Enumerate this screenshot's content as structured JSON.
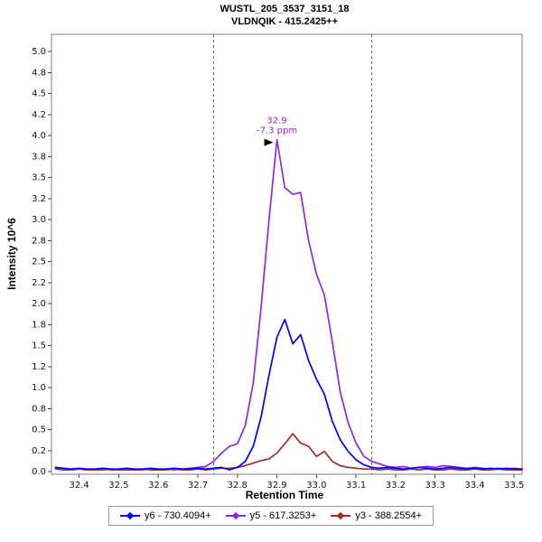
{
  "chart_data": {
    "type": "line",
    "title_line1": "WUSTL_205_3537_3151_18",
    "title_line2": "VLDNQIK - 415.2425++",
    "xlabel": "Retention Time",
    "ylabel": "Intensity 10^6",
    "xlim": [
      32.33,
      33.52
    ],
    "ylim": [
      0,
      5.22
    ],
    "grid": false,
    "legend_position": "bottom",
    "x_ticks": {
      "values": [
        32.4,
        32.5,
        32.6,
        32.7,
        32.8,
        32.9,
        33.0,
        33.1,
        33.2,
        33.3,
        33.4,
        33.5
      ],
      "labels": [
        "32.4",
        "32.5",
        "32.6",
        "32.7",
        "32.8",
        "32.9",
        "33.0",
        "33.1",
        "33.2",
        "33.3",
        "33.4",
        "33.5"
      ]
    },
    "y_ticks": {
      "values": [
        0,
        0.25,
        0.5,
        0.75,
        1,
        1.25,
        1.5,
        1.75,
        2,
        2.25,
        2.5,
        2.75,
        3,
        3.25,
        3.5,
        3.75,
        4,
        4.25,
        4.5,
        4.75,
        5
      ],
      "labels": [
        "0.0",
        "0.2",
        "0.5",
        "0.8",
        "1.0",
        "1.2",
        "1.5",
        "1.8",
        "2.0",
        "2.2",
        "2.5",
        "2.8",
        "3.0",
        "3.2",
        "3.5",
        "3.8",
        "4.0",
        "4.2",
        "4.5",
        "4.8",
        "5.0"
      ]
    },
    "integration_boundaries": [
      32.74,
      33.14
    ],
    "annotation": {
      "rt_label": "32.9",
      "ppm_label": "-7.3 ppm",
      "x": 32.9,
      "y": 3.95,
      "color": "#8a2be2"
    },
    "x": [
      32.34,
      32.36,
      32.38,
      32.4,
      32.42,
      32.44,
      32.46,
      32.48,
      32.5,
      32.52,
      32.54,
      32.56,
      32.58,
      32.6,
      32.62,
      32.64,
      32.66,
      32.68,
      32.7,
      32.72,
      32.74,
      32.76,
      32.78,
      32.8,
      32.82,
      32.84,
      32.86,
      32.88,
      32.9,
      32.92,
      32.94,
      32.96,
      32.98,
      33.0,
      33.02,
      33.04,
      33.06,
      33.08,
      33.1,
      33.12,
      33.14,
      33.16,
      33.18,
      33.2,
      33.22,
      33.24,
      33.26,
      33.28,
      33.3,
      33.32,
      33.34,
      33.36,
      33.38,
      33.4,
      33.42,
      33.44,
      33.46,
      33.48,
      33.5,
      33.52
    ],
    "series": [
      {
        "name": "y6 - 730.4094+",
        "color": "#0000ff",
        "values": [
          0.05,
          0.04,
          0.03,
          0.04,
          0.03,
          0.03,
          0.04,
          0.03,
          0.03,
          0.04,
          0.03,
          0.03,
          0.04,
          0.03,
          0.03,
          0.04,
          0.03,
          0.03,
          0.04,
          0.03,
          0.04,
          0.05,
          0.02,
          0.05,
          0.12,
          0.3,
          0.65,
          1.15,
          1.6,
          1.81,
          1.52,
          1.63,
          1.32,
          1.1,
          0.92,
          0.6,
          0.38,
          0.24,
          0.14,
          0.08,
          0.05,
          0.04,
          0.05,
          0.04,
          0.03,
          0.04,
          0.05,
          0.04,
          0.03,
          0.04,
          0.05,
          0.04,
          0.03,
          0.04,
          0.03,
          0.04,
          0.03,
          0.04,
          0.03,
          0.03
        ]
      },
      {
        "name": "y5 - 617.3253+",
        "color": "#8a2be2",
        "values": [
          0.04,
          0.03,
          0.02,
          0.03,
          0.02,
          0.02,
          0.03,
          0.02,
          0.02,
          0.03,
          0.02,
          0.02,
          0.03,
          0.02,
          0.03,
          0.02,
          0.03,
          0.04,
          0.05,
          0.06,
          0.12,
          0.22,
          0.3,
          0.33,
          0.55,
          1.05,
          1.95,
          3.0,
          3.95,
          3.38,
          3.3,
          3.32,
          2.75,
          2.35,
          2.1,
          1.55,
          0.95,
          0.58,
          0.34,
          0.18,
          0.12,
          0.09,
          0.06,
          0.05,
          0.06,
          0.04,
          0.05,
          0.06,
          0.05,
          0.07,
          0.06,
          0.05,
          0.04,
          0.05,
          0.04,
          0.03,
          0.04,
          0.03,
          0.04,
          0.03
        ]
      },
      {
        "name": "y3 - 388.2554+",
        "color": "#a52a2a",
        "values": [
          0.03,
          0.02,
          0.02,
          0.03,
          0.02,
          0.02,
          0.02,
          0.03,
          0.02,
          0.02,
          0.02,
          0.03,
          0.02,
          0.02,
          0.02,
          0.03,
          0.02,
          0.02,
          0.03,
          0.02,
          0.03,
          0.04,
          0.04,
          0.05,
          0.07,
          0.1,
          0.13,
          0.15,
          0.22,
          0.33,
          0.45,
          0.34,
          0.3,
          0.18,
          0.24,
          0.12,
          0.07,
          0.05,
          0.04,
          0.03,
          0.03,
          0.02,
          0.03,
          0.02,
          0.02,
          0.03,
          0.02,
          0.03,
          0.02,
          0.02,
          0.03,
          0.02,
          0.02,
          0.03,
          0.02,
          0.02,
          0.03,
          0.02,
          0.02,
          0.02
        ]
      }
    ]
  }
}
